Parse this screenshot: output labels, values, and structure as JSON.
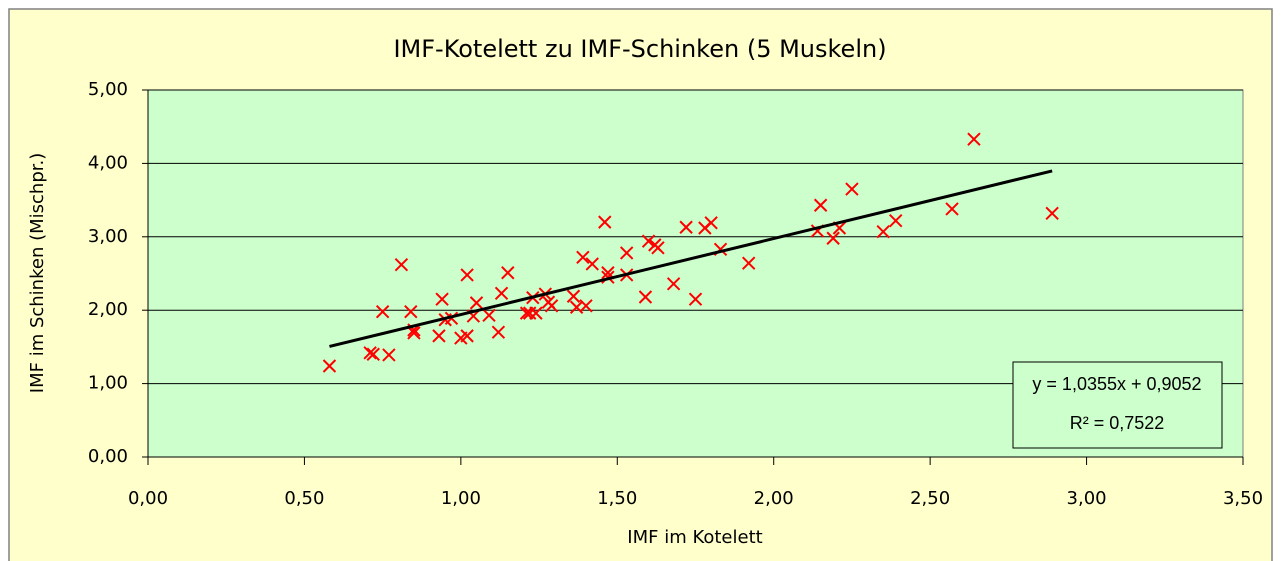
{
  "chart_data": {
    "type": "scatter",
    "title": "IMF-Kotelett zu IMF-Schinken (5 Muskeln)",
    "x_label": "IMF im Kotelett",
    "y_label": "IMF im Schinken (Mischpr.)",
    "series": [
      {
        "color": "#ff0000",
        "x": [
          0.58,
          0.71,
          0.72,
          0.77,
          0.75,
          0.81,
          0.84,
          0.85,
          0.85,
          0.93,
          0.94,
          0.95,
          0.97,
          1.0,
          1.02,
          1.02,
          1.04,
          1.05,
          1.09,
          1.12,
          1.13,
          1.15,
          1.21,
          1.22,
          1.23,
          1.24,
          1.27,
          1.28,
          1.29,
          1.36,
          1.37,
          1.39,
          1.4,
          1.42,
          1.46,
          1.47,
          1.47,
          1.53,
          1.53,
          1.59,
          1.6,
          1.62,
          1.63,
          1.68,
          1.72,
          1.75,
          1.78,
          1.8,
          1.83,
          1.92,
          2.14,
          2.15,
          2.19,
          2.21,
          2.25,
          2.35,
          2.39,
          2.57,
          2.64,
          2.89
        ],
        "values": [
          1.24,
          1.42,
          1.4,
          1.39,
          1.98,
          2.62,
          1.98,
          1.73,
          1.69,
          1.65,
          2.15,
          1.87,
          1.89,
          1.62,
          1.65,
          2.48,
          1.92,
          2.1,
          1.93,
          1.7,
          2.23,
          2.51,
          1.96,
          1.96,
          2.17,
          1.96,
          2.22,
          2.11,
          2.06,
          2.19,
          2.04,
          2.72,
          2.06,
          2.63,
          3.2,
          2.51,
          2.45,
          2.78,
          2.48,
          2.18,
          2.94,
          2.89,
          2.85,
          2.36,
          3.13,
          2.15,
          3.12,
          3.19,
          2.83,
          2.64,
          3.08,
          3.43,
          2.98,
          3.12,
          3.65,
          3.07,
          3.22,
          3.38,
          4.33,
          3.32
        ]
      }
    ],
    "trendline": {
      "slope": 1.0355,
      "intercept": 0.9052,
      "color": "#000000"
    },
    "annotations": [
      "y = 1,0355x + 0,9052",
      "R² = 0,7522"
    ],
    "xlim": [
      0,
      3.5
    ],
    "xticks": [
      {
        "value": 0,
        "label": "0,00"
      },
      {
        "value": 0.5,
        "label": "0,50"
      },
      {
        "value": 1,
        "label": "1,00"
      },
      {
        "value": 1.5,
        "label": "1,50"
      },
      {
        "value": 2,
        "label": "2,00"
      },
      {
        "value": 2.5,
        "label": "2,50"
      },
      {
        "value": 3,
        "label": "3,00"
      },
      {
        "value": 3.5,
        "label": "3,50"
      }
    ],
    "ylim": [
      0,
      5
    ],
    "yticks": [
      {
        "value": 0,
        "label": "0,00"
      },
      {
        "value": 1,
        "label": "1,00"
      },
      {
        "value": 2,
        "label": "2,00"
      },
      {
        "value": 3,
        "label": "3,00"
      },
      {
        "value": 4,
        "label": "4,00"
      },
      {
        "value": 5,
        "label": "5,00"
      }
    ],
    "grid": true
  }
}
